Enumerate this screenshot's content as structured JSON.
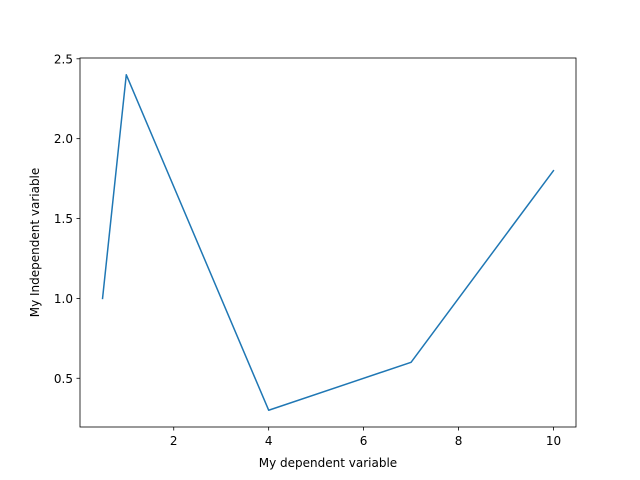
{
  "chart_data": {
    "type": "line",
    "title": "",
    "xlabel": "My dependent variable",
    "ylabel": "My Independent variable",
    "xlim": [
      0.025,
      10.475
    ],
    "ylim": [
      0.195,
      2.505
    ],
    "xticks": [
      2,
      4,
      6,
      8,
      10
    ],
    "yticks": [
      0.5,
      1.0,
      1.5,
      2.0,
      2.5
    ],
    "xtick_labels": [
      "2",
      "4",
      "6",
      "8",
      "10"
    ],
    "ytick_labels": [
      "0.5",
      "1.0",
      "1.5",
      "2.0",
      "2.5"
    ],
    "grid": false,
    "series": [
      {
        "color": "#1f77b4",
        "x": [
          0.5,
          1,
          4,
          7,
          10
        ],
        "y": [
          1.0,
          2.4,
          0.3,
          0.6,
          1.8
        ]
      }
    ]
  }
}
